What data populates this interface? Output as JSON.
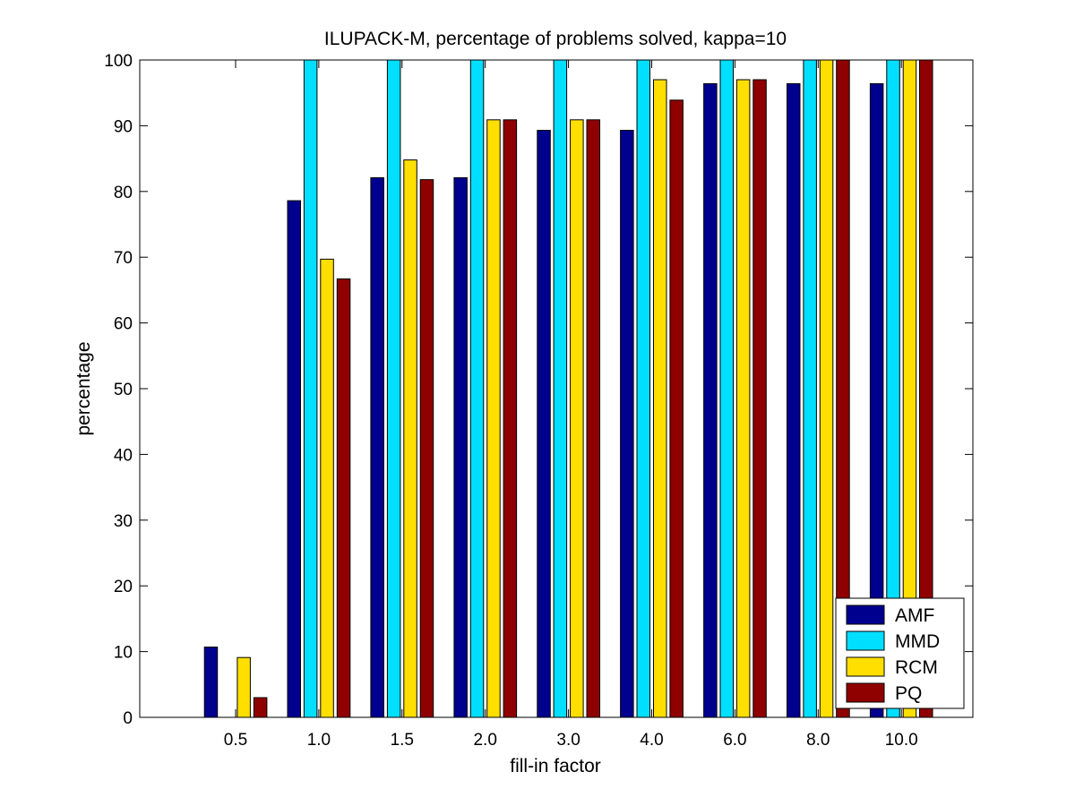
{
  "chart_data": {
    "type": "bar",
    "title": "ILUPACK-M, percentage of problems solved, kappa=10",
    "xlabel": "fill-in factor",
    "ylabel": "percentage",
    "ylim": [
      0,
      100
    ],
    "yticks": [
      0,
      10,
      20,
      30,
      40,
      50,
      60,
      70,
      80,
      90,
      100
    ],
    "categories": [
      "0.5",
      "1.0",
      "1.5",
      "2.0",
      "3.0",
      "4.0",
      "6.0",
      "8.0",
      "10.0"
    ],
    "legend_position": "bottom-right",
    "grid": false,
    "series": [
      {
        "name": "AMF",
        "color": "#00008f",
        "values": [
          10.7,
          78.6,
          82.1,
          82.1,
          89.3,
          89.3,
          96.4,
          96.4,
          96.4
        ]
      },
      {
        "name": "MMD",
        "color": "#00dfff",
        "values": [
          0,
          100,
          100,
          100,
          100,
          100,
          100,
          100,
          100
        ]
      },
      {
        "name": "RCM",
        "color": "#ffdf00",
        "values": [
          9.1,
          69.7,
          84.8,
          90.9,
          90.9,
          97.0,
          97.0,
          100,
          100
        ]
      },
      {
        "name": "PQ",
        "color": "#8f0000",
        "values": [
          3.0,
          66.7,
          81.8,
          90.9,
          90.9,
          93.9,
          97.0,
          100,
          100
        ]
      }
    ]
  }
}
